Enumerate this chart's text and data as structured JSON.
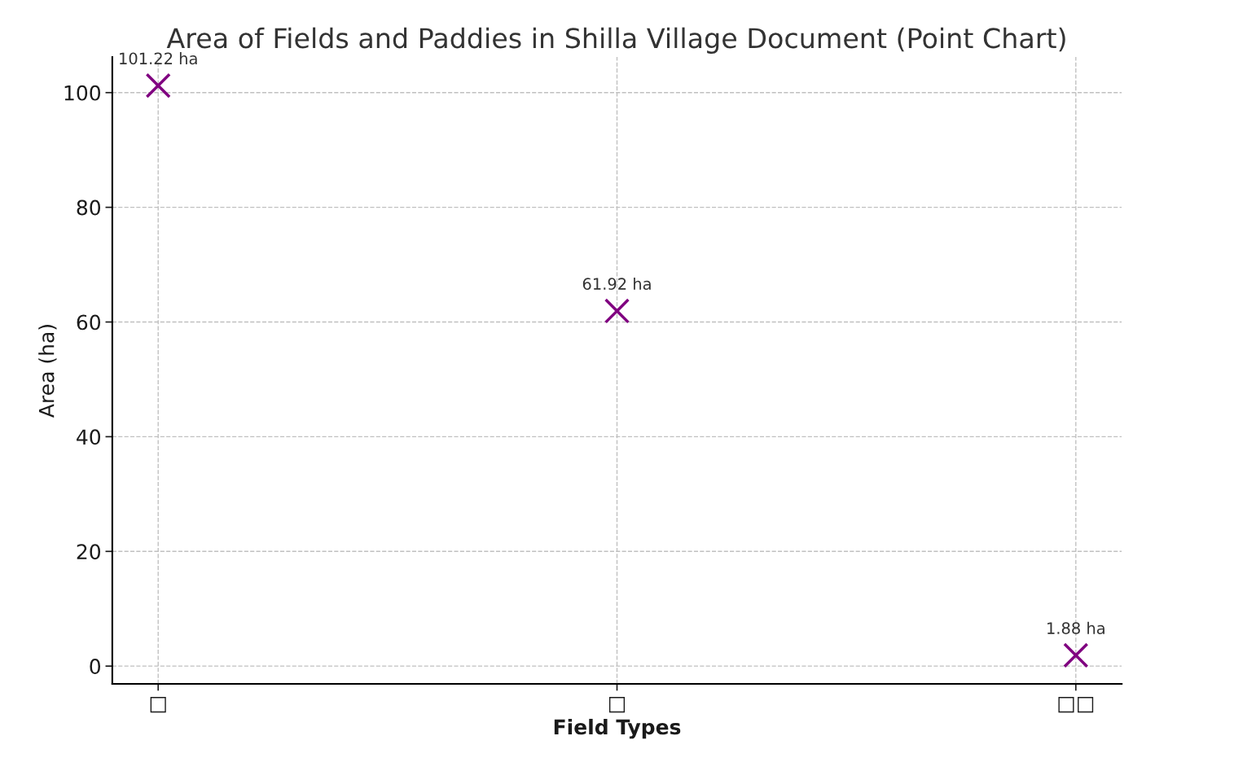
{
  "chart_data": {
    "type": "scatter",
    "title": "Area of Fields and Paddies in Shilla Village Document (Point Chart)",
    "xlabel": "Field Types",
    "ylabel": "Area (ha)",
    "categories": [
      "□",
      "□",
      "□□"
    ],
    "series": [
      {
        "color": "#800080",
        "values": [
          101.22,
          61.92,
          1.88
        ],
        "value_labels": [
          "101.22 ha",
          "61.92 ha",
          "1.88 ha"
        ]
      }
    ],
    "marker": "cross",
    "ylim": [
      -3.1,
      106.2
    ],
    "yticks": [
      0,
      20,
      40,
      60,
      80,
      100
    ],
    "grid": true
  }
}
